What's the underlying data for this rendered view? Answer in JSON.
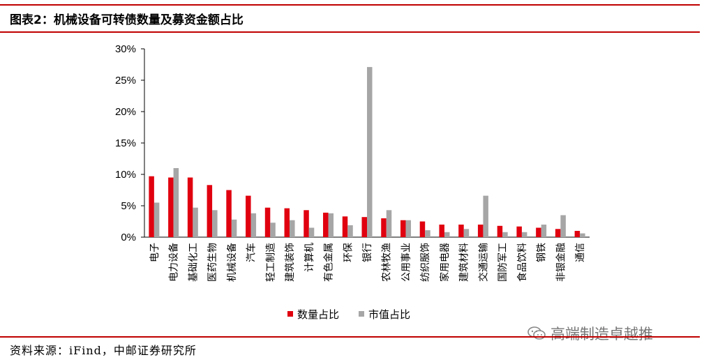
{
  "header": {
    "title": "图表2：机械设备可转债数量及募资金额占比"
  },
  "footer": {
    "source": "资料来源：iFind，中邮证券研究所"
  },
  "watermark": {
    "text": "高端制造卓越推",
    "icon": "wechat-icon"
  },
  "colors": {
    "accent": "#c00000",
    "series1": "#e0000f",
    "series2": "#a6a6a6"
  },
  "chart_data": {
    "type": "bar",
    "categories": [
      "电子",
      "电力设备",
      "基础化工",
      "医药生物",
      "机械设备",
      "汽车",
      "轻工制造",
      "建筑装饰",
      "计算机",
      "有色金属",
      "环保",
      "银行",
      "农林牧渔",
      "公用事业",
      "纺织服饰",
      "家用电器",
      "建筑材料",
      "交通运输",
      "国防军工",
      "食品饮料",
      "钢铁",
      "非银金融",
      "通信"
    ],
    "series": [
      {
        "name": "数量占比",
        "values": [
          9.7,
          9.5,
          9.5,
          8.3,
          7.5,
          6.6,
          4.7,
          4.6,
          4.3,
          3.9,
          3.3,
          3.2,
          3.0,
          2.7,
          2.5,
          2.0,
          2.0,
          2.0,
          1.8,
          1.7,
          1.5,
          1.3,
          1.0
        ]
      },
      {
        "name": "市值占比",
        "values": [
          5.5,
          11.0,
          4.7,
          4.3,
          2.8,
          3.8,
          2.3,
          2.7,
          1.5,
          3.8,
          1.9,
          27.1,
          4.3,
          2.7,
          1.1,
          0.8,
          1.3,
          6.6,
          0.8,
          0.8,
          2.0,
          3.5,
          0.6
        ]
      }
    ],
    "y_ticks": [
      "0%",
      "5%",
      "10%",
      "15%",
      "20%",
      "25%",
      "30%"
    ],
    "ylim": [
      0,
      30
    ],
    "legend_position": "bottom-center",
    "grid": false
  }
}
